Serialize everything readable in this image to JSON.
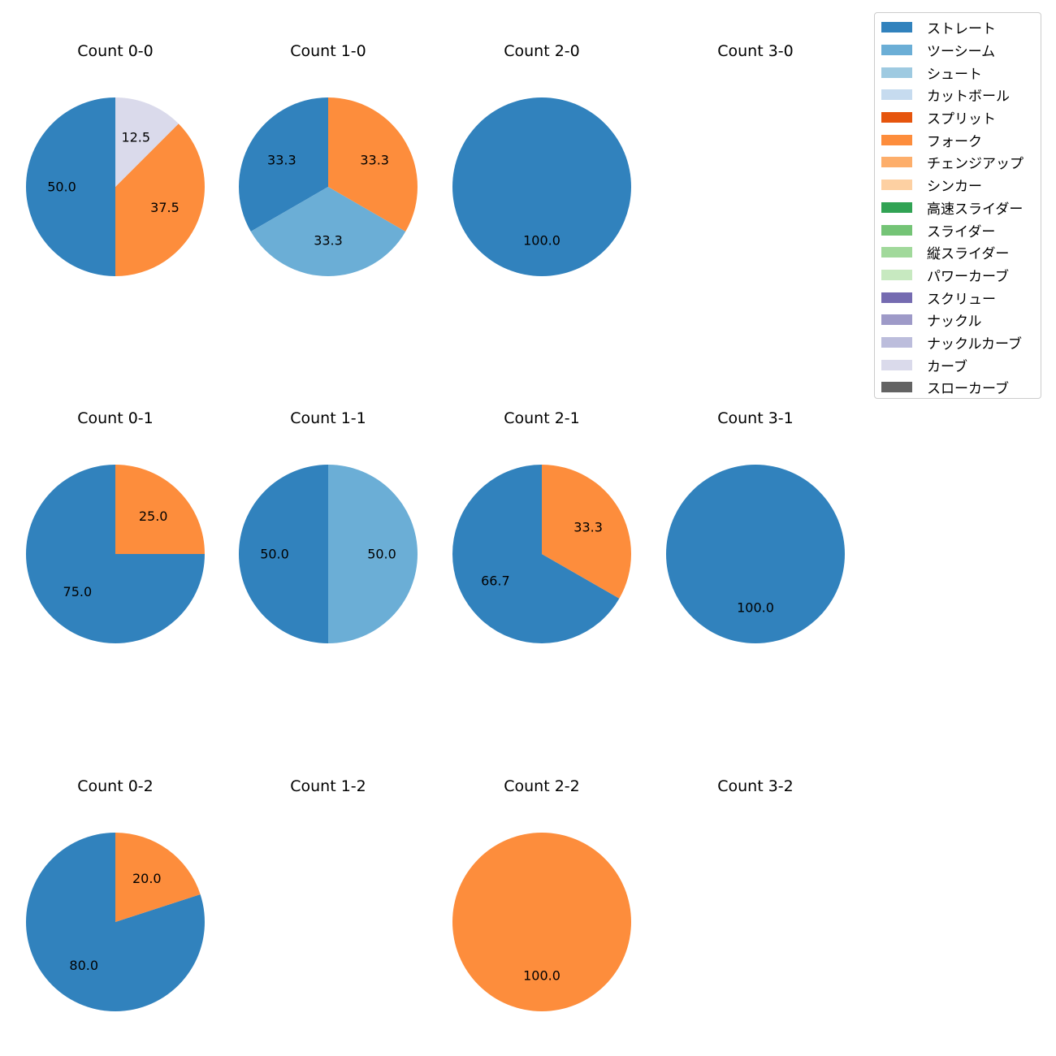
{
  "chart_data": {
    "type": "pie",
    "legend_position": "top-right",
    "start_angle": "90deg, counterclockwise",
    "pitch_types": [
      {
        "name": "ストレート",
        "color": "#3182bd"
      },
      {
        "name": "ツーシーム",
        "color": "#6baed6"
      },
      {
        "name": "シュート",
        "color": "#9ecae1"
      },
      {
        "name": "カットボール",
        "color": "#c6dbef"
      },
      {
        "name": "スプリット",
        "color": "#e6550d"
      },
      {
        "name": "フォーク",
        "color": "#fd8d3c"
      },
      {
        "name": "チェンジアップ",
        "color": "#fdae6b"
      },
      {
        "name": "シンカー",
        "color": "#fdd0a2"
      },
      {
        "name": "高速スライダー",
        "color": "#31a354"
      },
      {
        "name": "スライダー",
        "color": "#74c476"
      },
      {
        "name": "縦スライダー",
        "color": "#a1d99b"
      },
      {
        "name": "パワーカーブ",
        "color": "#c7e9c0"
      },
      {
        "name": "スクリュー",
        "color": "#756bb1"
      },
      {
        "name": "ナックル",
        "color": "#9e9ac8"
      },
      {
        "name": "ナックルカーブ",
        "color": "#bcbddc"
      },
      {
        "name": "カーブ",
        "color": "#dadaeb"
      },
      {
        "name": "スローカーブ",
        "color": "#636363"
      }
    ],
    "panels": [
      {
        "title": "Count 0-0",
        "slices": [
          {
            "pitch": "ストレート",
            "value": 50.0,
            "label": "50.0"
          },
          {
            "pitch": "フォーク",
            "value": 37.5,
            "label": "37.5"
          },
          {
            "pitch": "カーブ",
            "value": 12.5,
            "label": "12.5"
          }
        ]
      },
      {
        "title": "Count 1-0",
        "slices": [
          {
            "pitch": "ストレート",
            "value": 33.3,
            "label": "33.3"
          },
          {
            "pitch": "ツーシーム",
            "value": 33.3,
            "label": "33.3"
          },
          {
            "pitch": "フォーク",
            "value": 33.3,
            "label": "33.3"
          }
        ]
      },
      {
        "title": "Count 2-0",
        "slices": [
          {
            "pitch": "ストレート",
            "value": 100.0,
            "label": "100.0"
          }
        ]
      },
      {
        "title": "Count 3-0",
        "slices": []
      },
      {
        "title": "Count 0-1",
        "slices": [
          {
            "pitch": "ストレート",
            "value": 75.0,
            "label": "75.0"
          },
          {
            "pitch": "フォーク",
            "value": 25.0,
            "label": "25.0"
          }
        ]
      },
      {
        "title": "Count 1-1",
        "slices": [
          {
            "pitch": "ストレート",
            "value": 50.0,
            "label": "50.0"
          },
          {
            "pitch": "ツーシーム",
            "value": 50.0,
            "label": "50.0"
          }
        ]
      },
      {
        "title": "Count 2-1",
        "slices": [
          {
            "pitch": "ストレート",
            "value": 66.7,
            "label": "66.7"
          },
          {
            "pitch": "フォーク",
            "value": 33.3,
            "label": "33.3"
          }
        ]
      },
      {
        "title": "Count 3-1",
        "slices": [
          {
            "pitch": "ストレート",
            "value": 100.0,
            "label": "100.0"
          }
        ]
      },
      {
        "title": "Count 0-2",
        "slices": [
          {
            "pitch": "ストレート",
            "value": 80.0,
            "label": "80.0"
          },
          {
            "pitch": "フォーク",
            "value": 20.0,
            "label": "20.0"
          }
        ]
      },
      {
        "title": "Count 1-2",
        "slices": []
      },
      {
        "title": "Count 2-2",
        "slices": [
          {
            "pitch": "フォーク",
            "value": 100.0,
            "label": "100.0"
          }
        ]
      },
      {
        "title": "Count 3-2",
        "slices": []
      }
    ]
  }
}
